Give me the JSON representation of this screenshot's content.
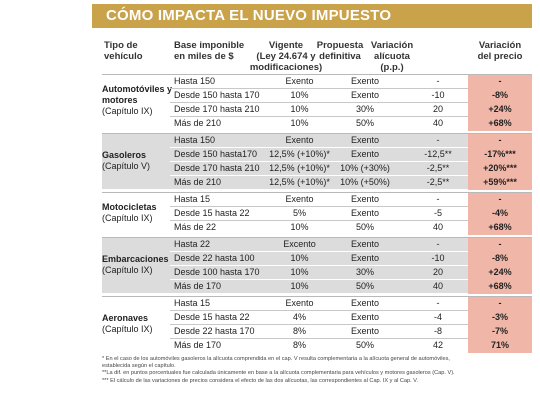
{
  "title": "CÓMO IMPACTA EL NUEVO IMPUESTO",
  "headers": {
    "tipo": [
      "Tipo de",
      "vehículo"
    ],
    "base": [
      "Base imponible",
      "en miles de $"
    ],
    "vigente": [
      "Vigente",
      "(Ley 24.674 y",
      "modificaciones)"
    ],
    "propuesta": [
      "Propuesta",
      "definitiva"
    ],
    "variacion_alicuota": [
      "Variación",
      "alícuota",
      "(p.p.)"
    ],
    "variacion_precio": [
      "Variación",
      "del precio"
    ]
  },
  "groups": [
    {
      "name": [
        "Automotóviles y",
        "motores"
      ],
      "chapter": "(Capítulo IX)",
      "rows": [
        {
          "base": "Hasta 150",
          "vigente": "Exento",
          "propuesta": "Exento",
          "variacion": "-",
          "precio": "-"
        },
        {
          "base": "Desde  150 hasta 170",
          "vigente": "10%",
          "propuesta": "Exento",
          "variacion": "-10",
          "precio": "-8%"
        },
        {
          "base": "Desde 170 hasta 210",
          "vigente": "10%",
          "propuesta": "30%",
          "variacion": "20",
          "precio": "+24%"
        },
        {
          "base": "Más de 210",
          "vigente": "10%",
          "propuesta": "50%",
          "variacion": "40",
          "precio": "+68%"
        }
      ]
    },
    {
      "name": [
        "Gasoleros"
      ],
      "chapter": "(Capítulo V)",
      "rows": [
        {
          "base": "Hasta  150",
          "vigente": "Exento",
          "propuesta": "Exento",
          "variacion": "-",
          "precio": "-"
        },
        {
          "base": "Desde  150 hasta170",
          "vigente": "12,5% (+10%)*",
          "propuesta": "Exento",
          "variacion": "-12,5**",
          "precio": "-17%***"
        },
        {
          "base": "Desde 170 hasta 210",
          "vigente": "12,5% (+10%)*",
          "propuesta": "10% (+30%)",
          "variacion": "-2,5**",
          "precio": "+20%***"
        },
        {
          "base": "Más de 210",
          "vigente": "12,5% (+10%)*",
          "propuesta": "10% (+50%)",
          "variacion": "-2,5**",
          "precio": "+59%***"
        }
      ]
    },
    {
      "name": [
        "Motocicletas"
      ],
      "chapter": "(Capítulo IX)",
      "rows": [
        {
          "base": "Hasta  15",
          "vigente": "Exento",
          "propuesta": "Exento",
          "variacion": "-",
          "precio": "-"
        },
        {
          "base": "Desde  15 hasta 22",
          "vigente": "5%",
          "propuesta": "Exento",
          "variacion": "-5",
          "precio": "-4%"
        },
        {
          "base": "Más de 22",
          "vigente": "10%",
          "propuesta": "50%",
          "variacion": "40",
          "precio": "+68%"
        }
      ]
    },
    {
      "name": [
        "Embarcaciones"
      ],
      "chapter": "(Capítulo IX)",
      "rows": [
        {
          "base": "Hasta  22",
          "vigente": "Excento",
          "propuesta": "Exento",
          "variacion": "-",
          "precio": "-"
        },
        {
          "base": "Desde  22 hasta 100",
          "vigente": "10%",
          "propuesta": "Exento",
          "variacion": "-10",
          "precio": "-8%"
        },
        {
          "base": "Desde 100 hasta 170",
          "vigente": "10%",
          "propuesta": "30%",
          "variacion": "20",
          "precio": "+24%"
        },
        {
          "base": "Más de 170",
          "vigente": "10%",
          "propuesta": "50%",
          "variacion": "40",
          "precio": "+68%"
        }
      ]
    },
    {
      "name": [
        "Aeronaves"
      ],
      "chapter": "(Capítulo IX)",
      "rows": [
        {
          "base": "Hasta  15",
          "vigente": "Exento",
          "propuesta": "Exento",
          "variacion": "-",
          "precio": "-"
        },
        {
          "base": "Desde  15 hasta 22",
          "vigente": "4%",
          "propuesta": "Exento",
          "variacion": "-4",
          "precio": "-3%"
        },
        {
          "base": "Desde 22 hasta 170",
          "vigente": "8%",
          "propuesta": "Exento",
          "variacion": "-8",
          "precio": "-7%"
        },
        {
          "base": "Más de 170",
          "vigente": "8%",
          "propuesta": "50%",
          "variacion": "42",
          "precio": "71%"
        }
      ]
    }
  ],
  "footnotes": [
    "* En el caso de los automóviles gasoleros la alícuota comprendida en el cap. V resulta complementaria a la alícuota general de automóviles,",
    "establecida según el capítulo.",
    "**La dif. en puntos porcentuales fue calculada únicamente en base a la alícuota complementaria para vehículos y motores gasoleros (Cap. V).",
    "*** El cálculo de las variaciones de precios considera el efecto de las dos alícuotas, las correspondientes al Cap. IX y al Cap. V."
  ]
}
